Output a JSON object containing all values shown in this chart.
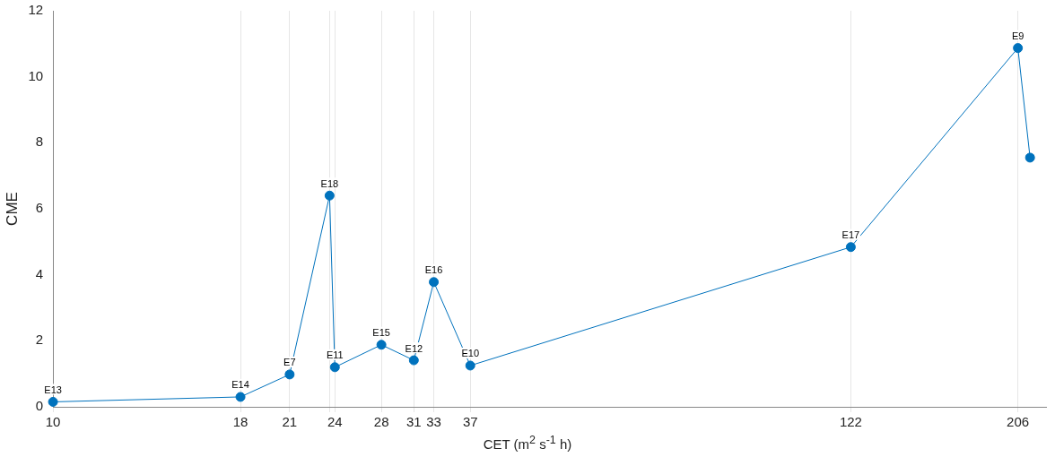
{
  "chart_data": {
    "type": "line",
    "xlabel": "CET (m$^{2}$ s$^{-1}$ h)",
    "ylabel": "CME",
    "log": "x",
    "x": [
      10,
      18,
      21,
      23.8,
      24.2,
      28,
      31,
      33,
      37,
      122,
      206,
      214
    ],
    "series": [
      {
        "color": "#0072bd",
        "values": [
          0.15,
          0.3,
          0.98,
          6.4,
          1.2,
          1.88,
          1.41,
          3.78,
          1.25,
          4.84,
          10.87,
          7.55
        ],
        "value_labels": [
          "E13",
          "E14",
          "E7",
          "E18",
          "E11",
          "E15",
          "E12",
          "E16",
          "E10",
          "E17",
          "E9",
          null
        ]
      }
    ],
    "xlim": [
      10,
      225
    ],
    "ylim": [
      0,
      12
    ],
    "xticks": [
      10,
      18,
      21,
      {
        "value": 23.8,
        "label": null
      },
      {
        "value": 24.2,
        "label": "24"
      },
      28,
      31,
      33,
      37,
      122,
      206
    ],
    "yticks": [
      0,
      2,
      4,
      6,
      8,
      10,
      12
    ],
    "grid": "x",
    "marker": "circle",
    "line_style": "solid"
  }
}
